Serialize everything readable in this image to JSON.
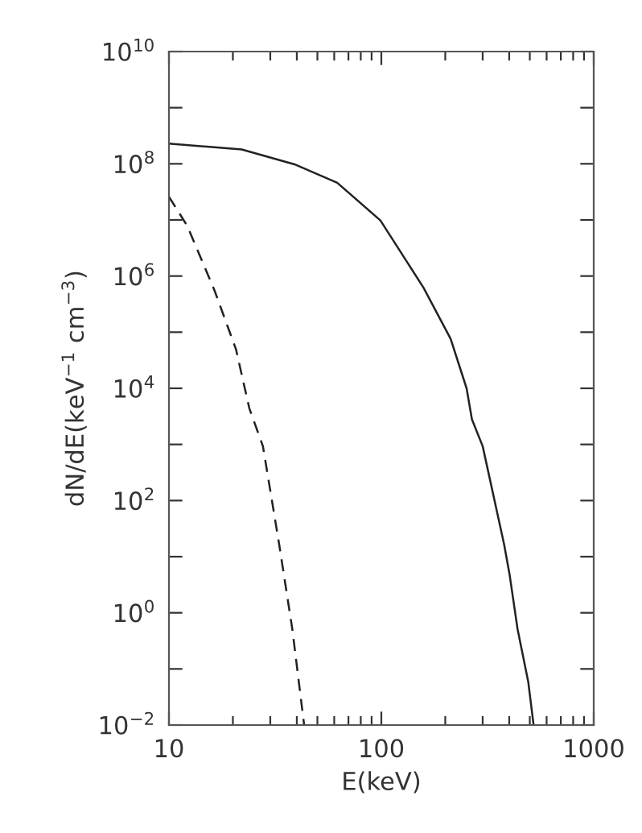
{
  "chart_data": {
    "type": "line",
    "xlabel": "E(keV)",
    "ylabel": "dN/dE(keV$^{−1}$ cm$^{−3}$)",
    "log": "xy",
    "grid": false,
    "xlim": [
      10,
      1000
    ],
    "ylim": [
      0.01,
      10000000000.0
    ],
    "xticks": [
      10,
      {
        "value": 20,
        "label": null
      },
      {
        "value": 30,
        "label": null
      },
      {
        "value": 40,
        "label": null
      },
      {
        "value": 50,
        "label": null
      },
      {
        "value": 60,
        "label": null
      },
      {
        "value": 70,
        "label": null
      },
      {
        "value": 80,
        "label": null
      },
      {
        "value": 90,
        "label": null
      },
      100,
      {
        "value": 200,
        "label": null
      },
      {
        "value": 300,
        "label": null
      },
      {
        "value": 400,
        "label": null
      },
      {
        "value": 500,
        "label": null
      },
      {
        "value": 600,
        "label": null
      },
      {
        "value": 700,
        "label": null
      },
      {
        "value": 800,
        "label": null
      },
      {
        "value": 900,
        "label": null
      },
      1000
    ],
    "yticks": [
      {
        "value": 0.01,
        "label": "10$^{−2}$"
      },
      {
        "value": 0.1,
        "label": null
      },
      {
        "value": 1,
        "label": "10$^{0}$"
      },
      {
        "value": 10,
        "label": null
      },
      {
        "value": 100,
        "label": "10$^{2}$"
      },
      {
        "value": 1000,
        "label": null
      },
      {
        "value": 10000,
        "label": "10$^{4}$"
      },
      {
        "value": 100000,
        "label": null
      },
      {
        "value": 1000000,
        "label": "10$^{6}$"
      },
      {
        "value": 10000000,
        "label": null
      },
      {
        "value": 100000000,
        "label": "10$^{8}$"
      },
      {
        "value": 1000000000,
        "label": null
      },
      {
        "value": 10000000000,
        "label": "10$^{10}$"
      }
    ],
    "series": [
      {
        "color": "#222222",
        "line_style": "solid",
        "x": [
          10,
          22,
          39,
          62,
          99,
          158,
          212,
          252,
          267,
          300,
          378,
          402,
          438,
          492,
          521
        ],
        "values": [
          230000000.0,
          180000000.0,
          98000000.0,
          46000000.0,
          9800000.0,
          620000.0,
          76000.0,
          10000.0,
          2800.0,
          930,
          17,
          4.7,
          0.51,
          0.058,
          0.01
        ]
      },
      {
        "color": "#222222",
        "line_style": "dashed",
        "x": [
          10,
          12.2,
          16.4,
          20.7,
          23.9,
          27.7,
          33.0,
          38.1,
          43.3
        ],
        "values": [
          26000000.0,
          7800000.0,
          550000.0,
          49000.0,
          4400.0,
          930,
          17,
          0.51,
          0.01
        ]
      }
    ]
  }
}
